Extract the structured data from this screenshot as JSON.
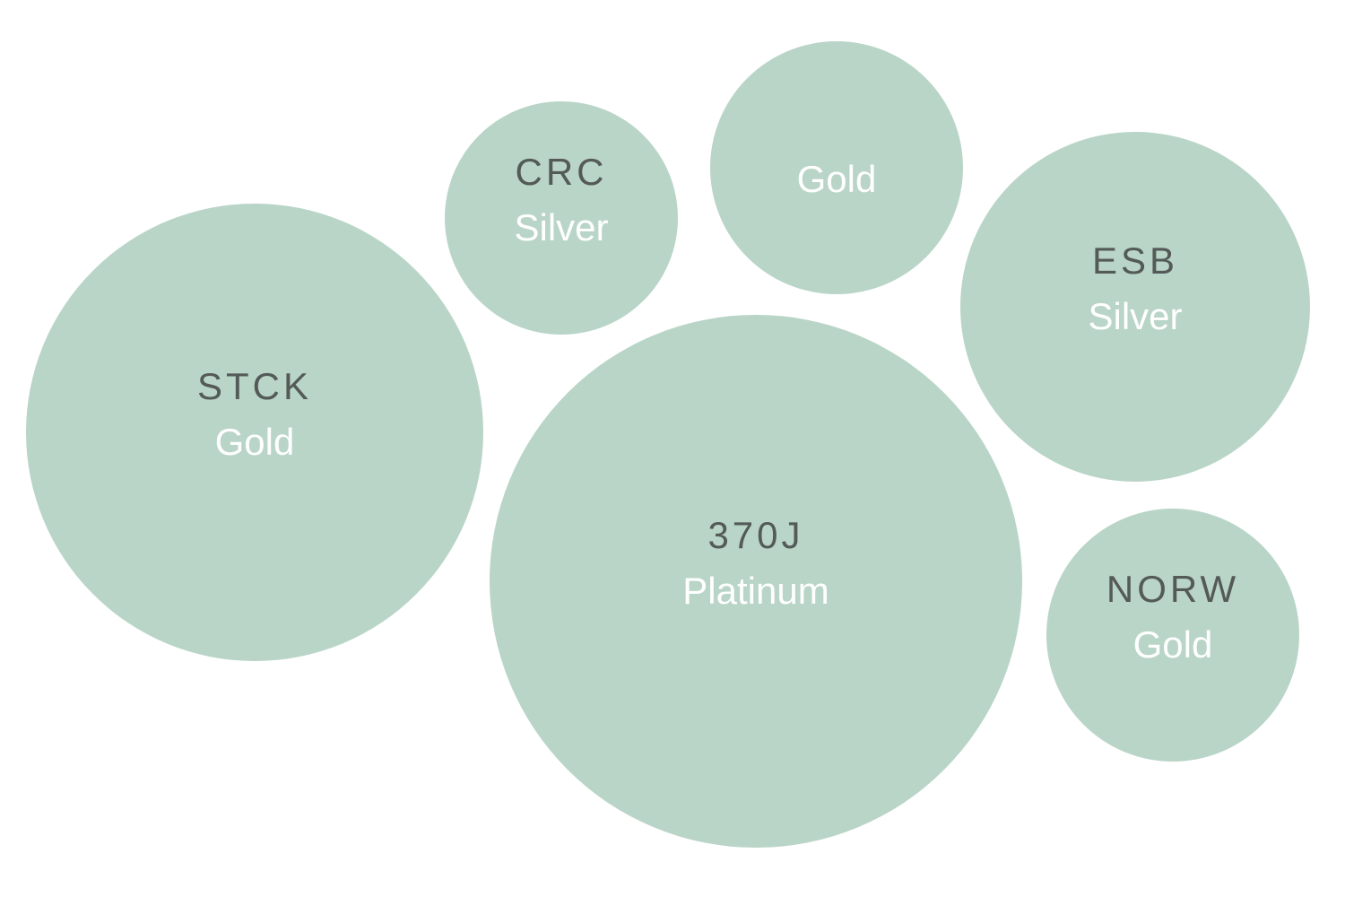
{
  "nodes": [
    {
      "code": "STCK",
      "tier": "Gold"
    },
    {
      "code": "CRC",
      "tier": "Silver"
    },
    {
      "tier": "Gold"
    },
    {
      "code": "ESB",
      "tier": "Silver"
    },
    {
      "code": "370J",
      "tier": "Platinum"
    },
    {
      "code": "NORW",
      "tier": "Gold"
    }
  ]
}
